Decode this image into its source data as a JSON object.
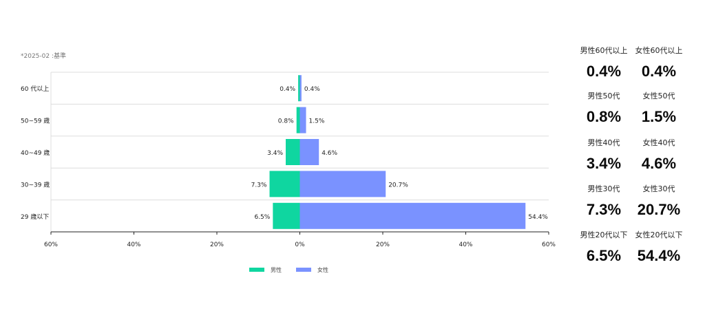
{
  "note": "*2025-02 :基準",
  "colors": {
    "male": "#0fd6a0",
    "female": "#7a92ff",
    "grid": "#dddddd",
    "axis": "#222222"
  },
  "chart_data": {
    "type": "bar",
    "orientation": "horizontal-pyramid",
    "categories": [
      "60 代以上",
      "50~59 歳",
      "40~49 歳",
      "30~39 歳",
      "29 歳以下"
    ],
    "series": [
      {
        "name": "男性",
        "values": [
          0.4,
          0.8,
          3.4,
          7.3,
          6.5
        ],
        "labels": [
          "0.4%",
          "0.8%",
          "3.4%",
          "7.3%",
          "6.5%"
        ]
      },
      {
        "name": "女性",
        "values": [
          0.4,
          1.5,
          4.6,
          20.7,
          54.4
        ],
        "labels": [
          "0.4%",
          "1.5%",
          "4.6%",
          "20.7%",
          "54.4%"
        ]
      }
    ],
    "xlim": [
      -60,
      60
    ],
    "xticks": [
      -60,
      -40,
      -20,
      0,
      20,
      40,
      60
    ],
    "xtick_labels": [
      "60%",
      "40%",
      "20%",
      "0%",
      "20%",
      "40%",
      "60%"
    ],
    "legend": {
      "position": "bottom",
      "items": [
        "男性",
        "女性"
      ]
    }
  },
  "stats": [
    {
      "male_label": "男性60代以上",
      "male_value": "0.4%",
      "female_label": "女性60代以上",
      "female_value": "0.4%"
    },
    {
      "male_label": "男性50代",
      "male_value": "0.8%",
      "female_label": "女性50代",
      "female_value": "1.5%"
    },
    {
      "male_label": "男性40代",
      "male_value": "3.4%",
      "female_label": "女性40代",
      "female_value": "4.6%"
    },
    {
      "male_label": "男性30代",
      "male_value": "7.3%",
      "female_label": "女性30代",
      "female_value": "20.7%"
    },
    {
      "male_label": "男性20代以下",
      "male_value": "6.5%",
      "female_label": "女性20代以下",
      "female_value": "54.4%"
    }
  ]
}
